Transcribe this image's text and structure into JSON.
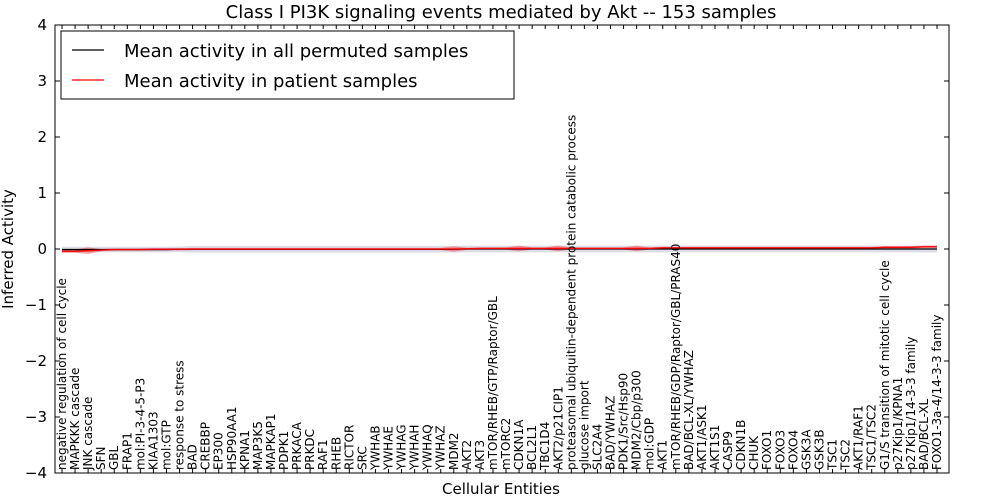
{
  "chart_data": {
    "type": "line",
    "title": "Class I PI3K signaling events mediated by Akt -- 153 samples",
    "xlabel": "Cellular Entities",
    "ylabel": "Inferred Activity",
    "ylim": [
      -4,
      4
    ],
    "yticks": [
      "−4",
      "−3",
      "−2",
      "−1",
      "0",
      "1",
      "2",
      "3",
      "4"
    ],
    "legend": {
      "position": "upper-left",
      "entries": [
        {
          "label": "Mean activity in all permuted samples",
          "color": "#000000"
        },
        {
          "label": "Mean activity in patient samples",
          "color": "#ff0000"
        }
      ]
    },
    "categories": [
      "negative regulation of cell cycle",
      "MAPKKK cascade",
      "JNK cascade",
      "SFN",
      "GBL",
      "FRAP1",
      "mol:PI-3-4-5-P3",
      "KIAA1303",
      "mol:GTP",
      "response to stress",
      "BAD",
      "CREBBP",
      "EP300",
      "HSP90AA1",
      "KPNA1",
      "MAP3K5",
      "MAPKAP1",
      "PDPK1",
      "PRKACA",
      "PRKDC",
      "RAF1",
      "RHEB",
      "RICTOR",
      "SRC",
      "YWHAB",
      "YWHAE",
      "YWHAG",
      "YWHAH",
      "YWHAQ",
      "YWHAZ",
      "MDM2",
      "AKT2",
      "AKT3",
      "mTOR/RHEB/GTP/Raptor/GBL",
      "mTORC2",
      "CDKN1A",
      "BCL2L1",
      "TBC1D4",
      "AKT2/p21CIP1",
      "proteasomal ubiquitin-dependent protein catabolic process",
      "glucose import",
      "SLC2A4",
      "BAD/YWHAZ",
      "PDK1/Src/Hsp90",
      "MDM2/Cbp/p300",
      "mol:GDP",
      "AKT1",
      "mTOR/RHEB/GDP/Raptor/GBL/PRAS40",
      "BAD/BCL-XL/YWHAZ",
      "AKT1/ASK1",
      "AKT1S1",
      "CASP9",
      "CDKN1B",
      "CHUK",
      "FOXO1",
      "FOXO3",
      "FOXO4",
      "GSK3A",
      "GSK3B",
      "TSC1",
      "TSC2",
      "AKT1/RAF1",
      "TSC1/TSC2",
      "G1/S transition of mitotic cell cycle",
      "p27Kip1/KPNA1",
      "p27Kip1/14-3-3 family",
      "BAD/BCL-XL",
      "FOXO1-3a-4/14-3-3 family"
    ],
    "series": [
      {
        "name": "Mean activity in all permuted samples",
        "color": "#000000",
        "values": [
          -0.01,
          -0.01,
          -0.01,
          -0.01,
          -0.01,
          -0.01,
          -0.01,
          -0.01,
          -0.01,
          -0.005,
          -0.005,
          -0.005,
          -0.005,
          -0.005,
          -0.005,
          -0.005,
          -0.005,
          -0.005,
          -0.005,
          -0.005,
          -0.005,
          -0.005,
          -0.005,
          -0.005,
          -0.005,
          -0.005,
          -0.005,
          -0.005,
          -0.005,
          -0.005,
          -0.005,
          0.0,
          0.0,
          0.0,
          0.0,
          0.0,
          0.0,
          0.0,
          0.0,
          0.0,
          0.0,
          0.0,
          0.0,
          0.0,
          0.0,
          0.0,
          0.0,
          0.0,
          0.0,
          0.0,
          0.0,
          0.0,
          0.0,
          0.0,
          0.0,
          0.0,
          0.0,
          0.0,
          0.0,
          0.0,
          0.0,
          0.0,
          0.0,
          0.0,
          0.0,
          0.0,
          0.0,
          0.0
        ],
        "band": [
          0.05,
          0.05,
          0.05,
          0.05,
          0.05,
          0.05,
          0.05,
          0.05,
          0.05,
          0.05,
          0.06,
          0.06,
          0.06,
          0.06,
          0.06,
          0.06,
          0.06,
          0.06,
          0.06,
          0.06,
          0.06,
          0.06,
          0.06,
          0.06,
          0.06,
          0.06,
          0.06,
          0.06,
          0.06,
          0.06,
          0.06,
          0.06,
          0.06,
          0.06,
          0.06,
          0.06,
          0.06,
          0.06,
          0.06,
          0.06,
          0.06,
          0.06,
          0.06,
          0.06,
          0.06,
          0.06,
          0.06,
          0.06,
          0.06,
          0.06,
          0.06,
          0.06,
          0.06,
          0.06,
          0.06,
          0.06,
          0.06,
          0.06,
          0.06,
          0.06,
          0.06,
          0.06,
          0.06,
          0.06,
          0.06,
          0.06,
          0.06,
          0.06
        ]
      },
      {
        "name": "Mean activity in patient samples",
        "color": "#ff0000",
        "values": [
          -0.04,
          -0.04,
          -0.03,
          -0.02,
          -0.01,
          -0.01,
          -0.01,
          -0.005,
          -0.005,
          -0.005,
          0.0,
          0.0,
          0.0,
          0.0,
          0.0,
          0.0,
          0.0,
          0.0,
          0.0,
          0.0,
          0.0,
          0.0,
          0.0,
          0.0,
          0.0,
          0.0,
          0.0,
          0.0,
          0.0,
          0.0,
          0.0,
          0.005,
          0.01,
          0.01,
          0.01,
          0.01,
          0.01,
          0.01,
          0.01,
          0.01,
          0.01,
          0.01,
          0.01,
          0.01,
          0.01,
          0.01,
          0.02,
          0.02,
          0.02,
          0.02,
          0.02,
          0.02,
          0.02,
          0.02,
          0.02,
          0.02,
          0.02,
          0.02,
          0.02,
          0.02,
          0.02,
          0.02,
          0.02,
          0.03,
          0.03,
          0.03,
          0.04,
          0.04
        ],
        "band": [
          0.03,
          0.03,
          0.06,
          0.02,
          0.02,
          0.02,
          0.02,
          0.02,
          0.02,
          0.02,
          0.02,
          0.02,
          0.02,
          0.02,
          0.02,
          0.02,
          0.02,
          0.02,
          0.02,
          0.02,
          0.02,
          0.02,
          0.02,
          0.02,
          0.02,
          0.02,
          0.02,
          0.02,
          0.02,
          0.02,
          0.05,
          0.02,
          0.02,
          0.02,
          0.02,
          0.05,
          0.02,
          0.02,
          0.05,
          0.02,
          0.02,
          0.02,
          0.02,
          0.02,
          0.05,
          0.02,
          0.02,
          0.02,
          0.02,
          0.02,
          0.02,
          0.02,
          0.02,
          0.02,
          0.02,
          0.02,
          0.02,
          0.02,
          0.02,
          0.02,
          0.02,
          0.02,
          0.02,
          0.02,
          0.02,
          0.02,
          0.02,
          0.02
        ]
      }
    ]
  }
}
